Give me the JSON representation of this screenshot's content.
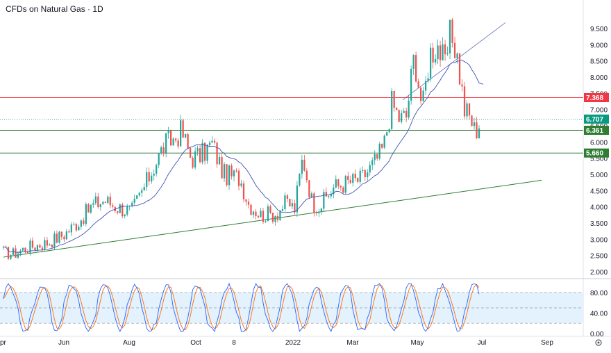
{
  "title": "CFDs on Natural Gas · 1D",
  "chart_data": [
    {
      "type": "candlestick",
      "y_ticks": [
        "9.500",
        "9.000",
        "8.500",
        "8.000",
        "7.500",
        "7.000",
        "6.500",
        "6.000",
        "5.500",
        "5.000",
        "4.500",
        "4.000",
        "3.500",
        "3.000",
        "2.500",
        "2.000"
      ],
      "ylim": [
        1.85,
        9.95
      ],
      "x_labels": [
        "pr",
        "Jun",
        "Aug",
        "Oct",
        "8",
        "2022",
        "Mar",
        "May",
        "Jul",
        "Sep"
      ],
      "price_levels": [
        {
          "value": 7.368,
          "label": "7.368",
          "color": "#f23645"
        },
        {
          "value": 6.707,
          "label": "6.707",
          "color": "#089981"
        },
        {
          "value": 6.361,
          "label": "6.361",
          "color": "#2e7d32"
        },
        {
          "value": 5.66,
          "label": "5.660",
          "color": "#2e7d32"
        }
      ],
      "colors": {
        "up": "#26a69a",
        "down": "#ef5350",
        "ma": "#3f51b5",
        "trend_green": "#2e7d32",
        "trend_blue": "#5c6bc0"
      }
    },
    {
      "type": "line",
      "name": "stochastic",
      "y_ticks": [
        "80.00",
        "40.00",
        "0.00"
      ],
      "ylim": [
        0,
        100
      ],
      "band": [
        20,
        80
      ],
      "colors": {
        "k": "#2962ff",
        "d": "#ff6d00",
        "band": "#e3f2fd"
      }
    }
  ]
}
